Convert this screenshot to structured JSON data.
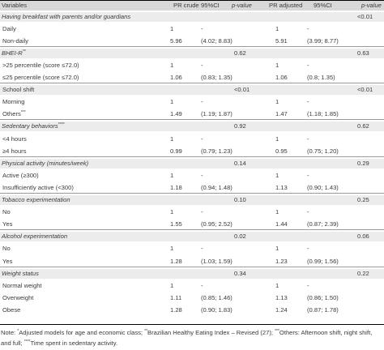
{
  "headers": [
    "Variables",
    "PR crude",
    "95%CI",
    "p-value",
    "PR adjusted",
    "95%CI",
    "p-value"
  ],
  "rows": [
    {
      "type": "group",
      "label": "Having breakfast with parents and/or guardians",
      "p1": "",
      "p2": "<0.01"
    },
    {
      "type": "data",
      "label": "Daily",
      "pr": "1",
      "ci": "-",
      "pra": "1",
      "cia": "-"
    },
    {
      "type": "data",
      "label": "Non-daily",
      "pr": "5.96",
      "ci": "(4.02; 8.83)",
      "pra": "5.91",
      "cia": "(3.99; 8.77)"
    },
    {
      "type": "group",
      "label": "BHEI-R",
      "sup": "**",
      "p1": "0.62",
      "p2": "0.63"
    },
    {
      "type": "data",
      "label": ">25 percentile (score ≤72.0)",
      "pr": "1",
      "ci": "-",
      "pra": "1",
      "cia": "-"
    },
    {
      "type": "data",
      "label": "≤25 percentile (score ≤72.0)",
      "pr": "1.06",
      "ci": "(0.83; 1.35)",
      "pra": "1.06",
      "cia": "(0.8; 1.35)"
    },
    {
      "type": "plain",
      "label": "School shift",
      "p1": "<0.01",
      "p2": "<0.01"
    },
    {
      "type": "data",
      "label": "Morning",
      "pr": "1",
      "ci": "-",
      "pra": "1",
      "cia": "-"
    },
    {
      "type": "data",
      "label": "Others",
      "sup": "***",
      "pr": "1.49",
      "ci": "(1.19; 1.87)",
      "pra": "1.47",
      "cia": "(1.18; 1.85)"
    },
    {
      "type": "group",
      "label": "Sedentary behaviors",
      "sup": "****",
      "p1": "0.92",
      "p2": "0.62"
    },
    {
      "type": "data",
      "label": "<4 hours",
      "pr": "1",
      "ci": "-",
      "pra": "1",
      "cia": "-"
    },
    {
      "type": "data",
      "label": "≥4 hours",
      "pr": "0.99",
      "ci": "(0.79; 1.23)",
      "pra": "0.95",
      "cia": "(0.75; 1.20)"
    },
    {
      "type": "group",
      "label": "Physical activity (minutes/week)",
      "p1": "0.14",
      "p2": "0.29"
    },
    {
      "type": "data",
      "label": "Active (≥300)",
      "pr": "1",
      "ci": "-",
      "pra": "1",
      "cia": "-"
    },
    {
      "type": "data",
      "label": "Insufficiently active (<300)",
      "pr": "1.18",
      "ci": "(0.94; 1.48)",
      "pra": "1.13",
      "cia": "(0.90; 1.43)"
    },
    {
      "type": "group",
      "label": "Tobacco experimentation",
      "p1": "0.10",
      "p2": "0.25"
    },
    {
      "type": "data",
      "label": "No",
      "pr": "1",
      "ci": "-",
      "pra": "1",
      "cia": "-"
    },
    {
      "type": "data",
      "label": "Yes",
      "pr": "1.55",
      "ci": "(0.95; 2.52)",
      "pra": "1.44",
      "cia": "(0.87; 2.39)"
    },
    {
      "type": "group",
      "label": "Alcohol experimentation",
      "p1": "0.02",
      "p2": "0.06"
    },
    {
      "type": "data",
      "label": "No",
      "pr": "1",
      "ci": "-",
      "pra": "1",
      "cia": "-"
    },
    {
      "type": "data",
      "label": "Yes",
      "pr": "1.28",
      "ci": "(1.03; 1.59)",
      "pra": "1.23",
      "cia": "(0.99; 1.56)"
    },
    {
      "type": "group",
      "label": "Weight status",
      "p1": "0.34",
      "p2": "0.22"
    },
    {
      "type": "data",
      "label": "Normal weight",
      "pr": "1",
      "ci": "-",
      "pra": "1",
      "cia": "-"
    },
    {
      "type": "data",
      "label": "Overweight",
      "pr": "1.11",
      "ci": "(0.85; 1.46)",
      "pra": "1.13",
      "cia": "(0.86; 1.50)"
    },
    {
      "type": "data",
      "label": "Obese",
      "pr": "1.28",
      "ci": "(0.90; 1.83)",
      "pra": "1.24",
      "cia": "(0.87; 1.78)"
    }
  ],
  "note": {
    "prefix": "Note: ",
    "m1": "*",
    "t1": "Adjusted models for age and economic class; ",
    "m2": "**",
    "t2": "Brazilian Healthy Eating Index – Revised (27); ",
    "m3": "***",
    "t3": "Others: Afternoon shift, night shift, and full; ",
    "m4": "****",
    "t4": "Time spent in sedentary activity."
  }
}
